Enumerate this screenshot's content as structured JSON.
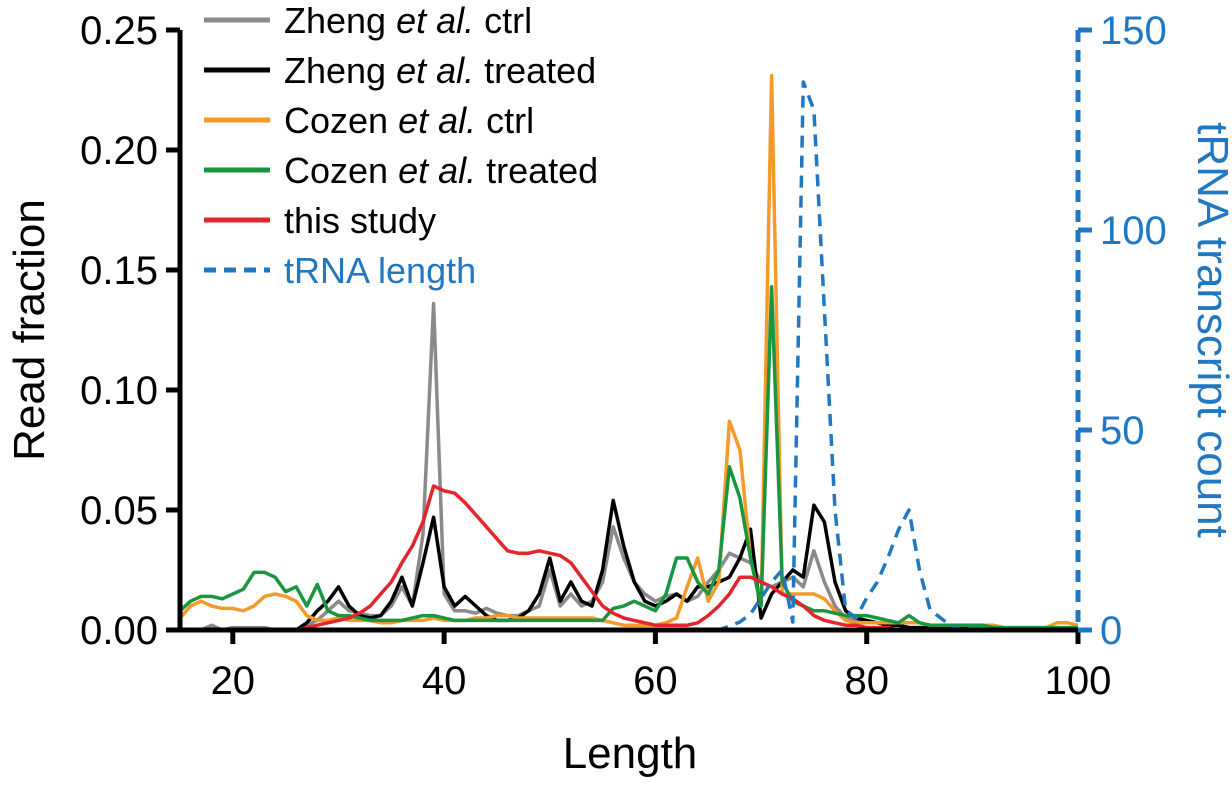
{
  "chart_data": {
    "type": "line",
    "xlabel": "Length",
    "ylabel": "Read fraction",
    "y2label": "tRNA transcript count",
    "xlim": [
      15,
      100
    ],
    "ylim": [
      0,
      0.25
    ],
    "y2lim": [
      0,
      150
    ],
    "xticks": [
      "20",
      "40",
      "60",
      "80",
      "100"
    ],
    "xtick_values": [
      20,
      40,
      60,
      80,
      100
    ],
    "yticks": [
      "0.00",
      "0.05",
      "0.10",
      "0.15",
      "0.20",
      "0.25"
    ],
    "ytick_values": [
      0,
      0.05,
      0.1,
      0.15,
      0.2,
      0.25
    ],
    "y2ticks": [
      "0",
      "50",
      "100",
      "150"
    ],
    "y2tick_values": [
      0,
      50,
      100,
      150
    ],
    "legend_position": "top-left",
    "x": [
      15,
      16,
      17,
      18,
      19,
      20,
      21,
      22,
      23,
      24,
      25,
      26,
      27,
      28,
      29,
      30,
      31,
      32,
      33,
      34,
      35,
      36,
      37,
      38,
      39,
      40,
      41,
      42,
      43,
      44,
      45,
      46,
      47,
      48,
      49,
      50,
      51,
      52,
      53,
      54,
      55,
      56,
      57,
      58,
      59,
      60,
      61,
      62,
      63,
      64,
      65,
      66,
      67,
      68,
      69,
      70,
      71,
      72,
      73,
      74,
      75,
      76,
      77,
      78,
      79,
      80,
      81,
      82,
      83,
      84,
      85,
      86,
      87,
      88,
      89,
      90,
      91,
      92,
      93,
      94,
      95,
      96,
      97,
      98,
      99,
      100
    ],
    "series": [
      {
        "name_parts": [
          "Zheng ",
          "et al.",
          " ctrl"
        ],
        "color": "#8a8a8a",
        "axis": "left",
        "dash": false,
        "values": [
          0.0,
          0.0,
          0.0,
          0.002,
          0.0,
          0.001,
          0.001,
          0.001,
          0.001,
          0.0,
          0.0,
          0.0,
          0.002,
          0.004,
          0.008,
          0.012,
          0.008,
          0.007,
          0.006,
          0.006,
          0.01,
          0.018,
          0.01,
          0.04,
          0.136,
          0.015,
          0.008,
          0.008,
          0.007,
          0.009,
          0.007,
          0.006,
          0.006,
          0.008,
          0.01,
          0.025,
          0.01,
          0.015,
          0.01,
          0.012,
          0.02,
          0.043,
          0.03,
          0.02,
          0.015,
          0.012,
          0.014,
          0.015,
          0.012,
          0.014,
          0.02,
          0.025,
          0.032,
          0.03,
          0.028,
          0.02,
          0.018,
          0.02,
          0.022,
          0.018,
          0.033,
          0.02,
          0.01,
          0.005,
          0.004,
          0.003,
          0.003,
          0.002,
          0.002,
          0.001,
          0.001,
          0.001,
          0.001,
          0.001,
          0.001,
          0.001,
          0.001,
          0.0,
          0.0,
          0.0,
          0.0,
          0.0,
          0.0,
          0.0,
          0.0,
          0.0
        ]
      },
      {
        "name_parts": [
          "Zheng ",
          "et al.",
          " treated"
        ],
        "color": "#000000",
        "axis": "left",
        "dash": false,
        "values": [
          0.0,
          0.0,
          0.0,
          0.0,
          0.0,
          0.0,
          0.0,
          0.0,
          0.0,
          0.0,
          0.0,
          0.0,
          0.003,
          0.008,
          0.012,
          0.018,
          0.01,
          0.006,
          0.005,
          0.006,
          0.012,
          0.022,
          0.01,
          0.028,
          0.047,
          0.018,
          0.01,
          0.014,
          0.01,
          0.006,
          0.004,
          0.004,
          0.005,
          0.008,
          0.015,
          0.03,
          0.012,
          0.02,
          0.012,
          0.01,
          0.025,
          0.054,
          0.035,
          0.02,
          0.012,
          0.01,
          0.012,
          0.015,
          0.012,
          0.018,
          0.018,
          0.02,
          0.022,
          0.03,
          0.042,
          0.005,
          0.015,
          0.02,
          0.025,
          0.022,
          0.052,
          0.045,
          0.02,
          0.008,
          0.005,
          0.004,
          0.003,
          0.002,
          0.002,
          0.001,
          0.001,
          0.001,
          0.001,
          0.001,
          0.001,
          0.0,
          0.0,
          0.0,
          0.0,
          0.0,
          0.0,
          0.0,
          0.0,
          0.0,
          0.0,
          0.0
        ]
      },
      {
        "name_parts": [
          "Cozen ",
          "et al.",
          " ctrl"
        ],
        "color": "#f39a2b",
        "axis": "left",
        "dash": false,
        "values": [
          0.005,
          0.01,
          0.012,
          0.01,
          0.009,
          0.009,
          0.008,
          0.01,
          0.014,
          0.015,
          0.014,
          0.012,
          0.006,
          0.004,
          0.004,
          0.005,
          0.004,
          0.004,
          0.004,
          0.003,
          0.003,
          0.004,
          0.004,
          0.004,
          0.005,
          0.004,
          0.004,
          0.004,
          0.005,
          0.005,
          0.006,
          0.006,
          0.005,
          0.005,
          0.005,
          0.005,
          0.005,
          0.005,
          0.005,
          0.005,
          0.004,
          0.003,
          0.002,
          0.002,
          0.002,
          0.002,
          0.003,
          0.005,
          0.018,
          0.03,
          0.012,
          0.02,
          0.087,
          0.075,
          0.03,
          0.01,
          0.231,
          0.015,
          0.015,
          0.015,
          0.015,
          0.013,
          0.008,
          0.004,
          0.003,
          0.003,
          0.003,
          0.003,
          0.003,
          0.003,
          0.003,
          0.002,
          0.002,
          0.002,
          0.002,
          0.002,
          0.002,
          0.002,
          0.001,
          0.001,
          0.001,
          0.001,
          0.001,
          0.003,
          0.003,
          0.002
        ]
      },
      {
        "name_parts": [
          "Cozen ",
          "et al.",
          " treated"
        ],
        "color": "#1a9641",
        "axis": "left",
        "dash": false,
        "values": [
          0.008,
          0.012,
          0.014,
          0.014,
          0.013,
          0.015,
          0.017,
          0.024,
          0.024,
          0.022,
          0.016,
          0.018,
          0.01,
          0.019,
          0.008,
          0.006,
          0.006,
          0.005,
          0.004,
          0.004,
          0.004,
          0.004,
          0.005,
          0.006,
          0.006,
          0.005,
          0.004,
          0.004,
          0.004,
          0.004,
          0.004,
          0.004,
          0.004,
          0.004,
          0.004,
          0.004,
          0.004,
          0.004,
          0.004,
          0.004,
          0.004,
          0.009,
          0.01,
          0.012,
          0.01,
          0.008,
          0.015,
          0.03,
          0.03,
          0.02,
          0.015,
          0.025,
          0.068,
          0.055,
          0.03,
          0.01,
          0.143,
          0.02,
          0.012,
          0.01,
          0.008,
          0.008,
          0.007,
          0.006,
          0.006,
          0.006,
          0.005,
          0.004,
          0.003,
          0.006,
          0.003,
          0.002,
          0.002,
          0.002,
          0.002,
          0.002,
          0.002,
          0.001,
          0.001,
          0.001,
          0.001,
          0.001,
          0.001,
          0.001,
          0.001,
          0.001
        ]
      },
      {
        "name_parts": [
          "this study"
        ],
        "color": "#e3262b",
        "axis": "left",
        "dash": false,
        "values": [
          0.0,
          0.0,
          0.0,
          0.0,
          0.0,
          0.0,
          0.0,
          0.0,
          0.0,
          0.0,
          0.0,
          0.0,
          0.001,
          0.002,
          0.003,
          0.004,
          0.005,
          0.007,
          0.01,
          0.015,
          0.02,
          0.028,
          0.035,
          0.045,
          0.06,
          0.058,
          0.057,
          0.053,
          0.048,
          0.043,
          0.038,
          0.033,
          0.032,
          0.032,
          0.033,
          0.032,
          0.031,
          0.028,
          0.022,
          0.016,
          0.01,
          0.007,
          0.005,
          0.004,
          0.003,
          0.002,
          0.002,
          0.002,
          0.002,
          0.003,
          0.006,
          0.01,
          0.015,
          0.022,
          0.022,
          0.02,
          0.018,
          0.015,
          0.013,
          0.01,
          0.006,
          0.004,
          0.003,
          0.002,
          0.002,
          0.001,
          0.001,
          0.001,
          0.0,
          0.0,
          0.0,
          0.0,
          0.0,
          0.0,
          0.0,
          0.0,
          0.0,
          0.0,
          0.0,
          0.0,
          0.0,
          0.0,
          0.0,
          0.0,
          0.0,
          0.0
        ]
      },
      {
        "name_parts": [
          "tRNA length"
        ],
        "color": "#1f78c1",
        "axis": "right",
        "dash": true,
        "points": [
          [
            62,
            0
          ],
          [
            63,
            0
          ],
          [
            64,
            0
          ],
          [
            65,
            0
          ],
          [
            66,
            0
          ],
          [
            67,
            1
          ],
          [
            68,
            2
          ],
          [
            69,
            4
          ],
          [
            70,
            8
          ],
          [
            71,
            12
          ],
          [
            72,
            15
          ],
          [
            73,
            2
          ],
          [
            74,
            137
          ],
          [
            75,
            130
          ],
          [
            76,
            80
          ],
          [
            77,
            30
          ],
          [
            78,
            5
          ],
          [
            79,
            3
          ],
          [
            80,
            8
          ],
          [
            81,
            12
          ],
          [
            82,
            18
          ],
          [
            83,
            25
          ],
          [
            84,
            30
          ],
          [
            85,
            15
          ],
          [
            86,
            5
          ],
          [
            87,
            3
          ],
          [
            88,
            1
          ],
          [
            89,
            0
          ],
          [
            90,
            0
          ]
        ]
      }
    ]
  }
}
